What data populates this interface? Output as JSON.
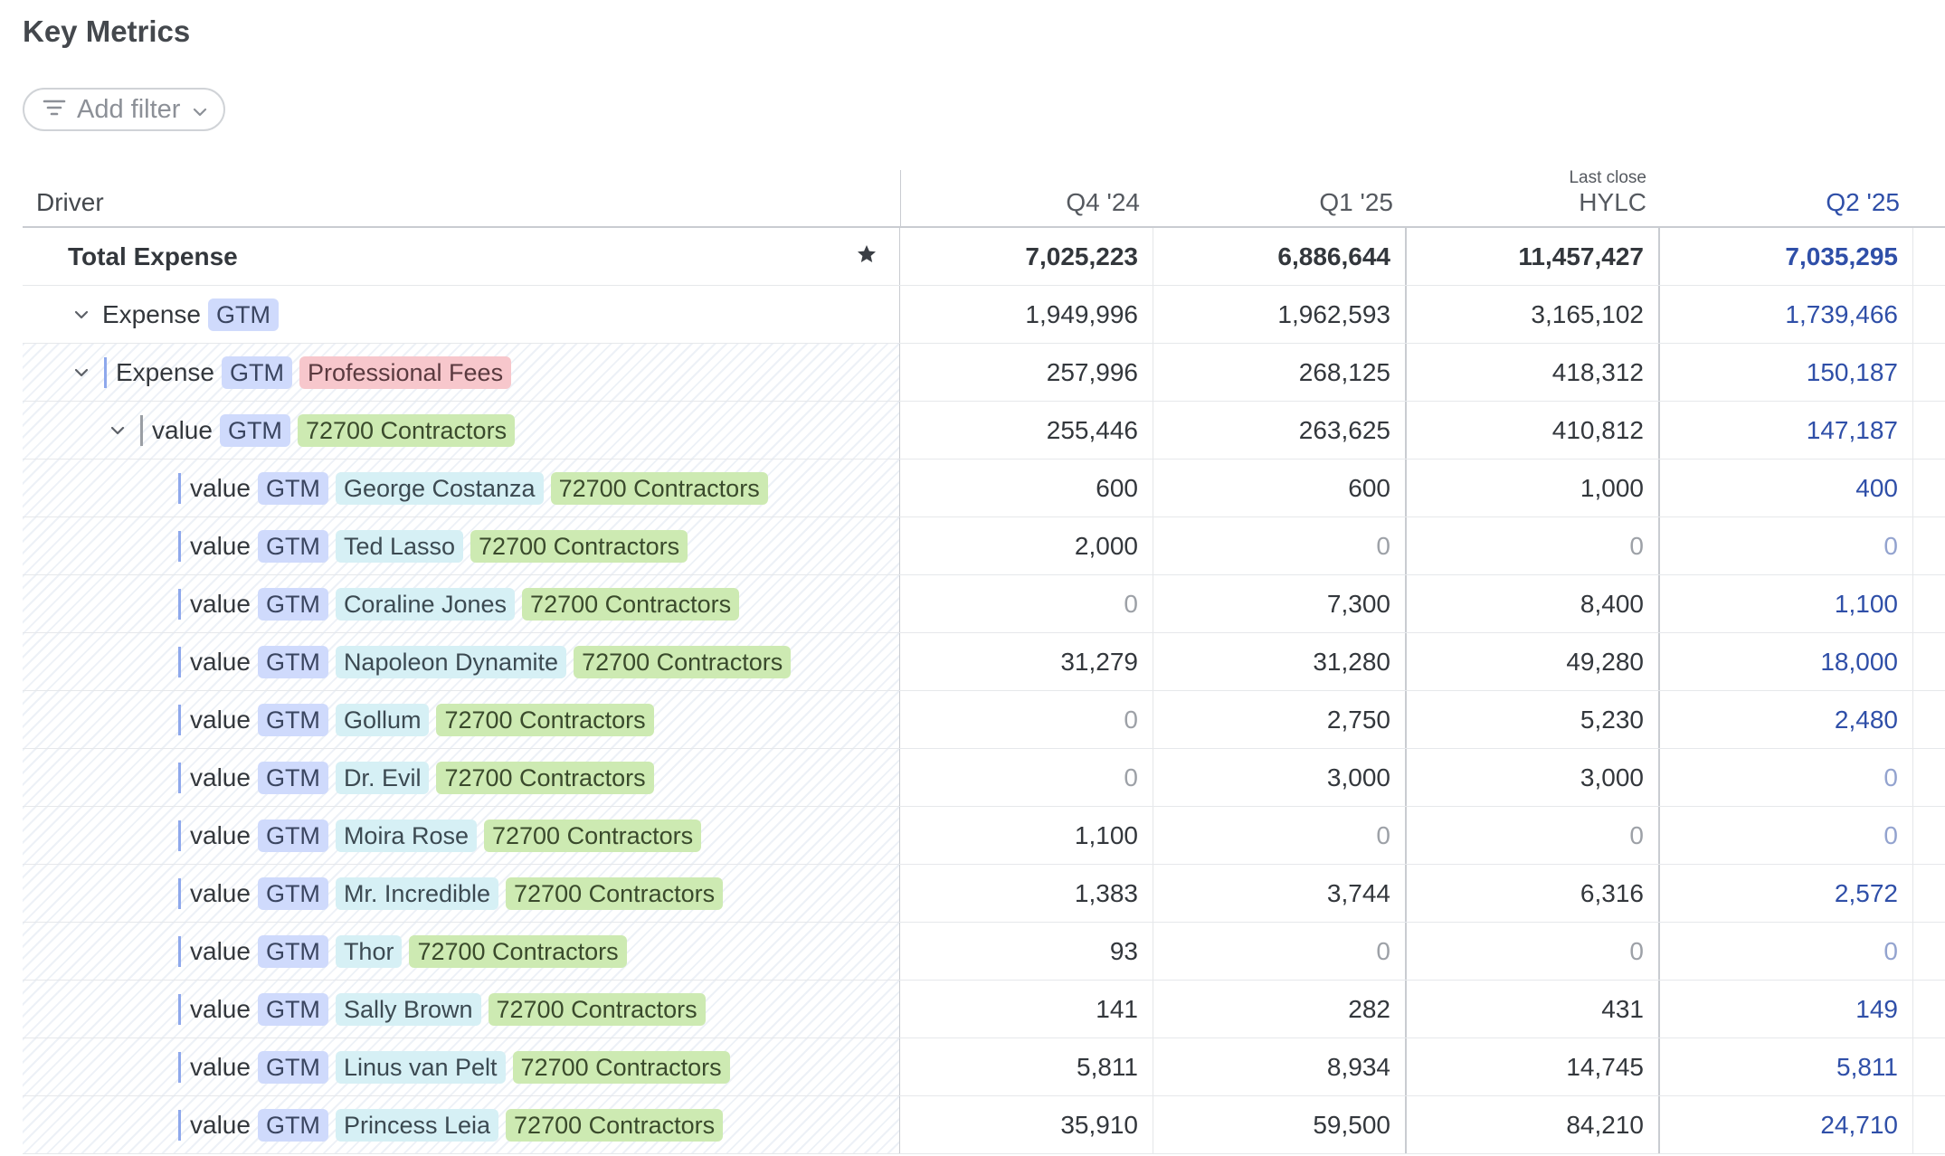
{
  "title": "Key Metrics",
  "filter": {
    "label": "Add filter"
  },
  "columns": {
    "driver": "Driver",
    "c1": "Q4 '24",
    "c2": "Q1 '25",
    "c3_sub": "Last close",
    "c3": "HYLC",
    "c4": "Q2 '25"
  },
  "total": {
    "label": "Total Expense",
    "v1": "7,025,223",
    "v2": "6,886,644",
    "v3": "11,457,427",
    "v4": "7,035,295"
  },
  "expense_gtm": {
    "label": "Expense",
    "tag": "GTM",
    "v1": "1,949,996",
    "v2": "1,962,593",
    "v3": "3,165,102",
    "v4": "1,739,466"
  },
  "expense_fees": {
    "label": "Expense",
    "tag": "GTM",
    "tag2": "Professional Fees",
    "v1": "257,996",
    "v2": "268,125",
    "v3": "418,312",
    "v4": "150,187"
  },
  "value_contractors": {
    "label": "value",
    "tag": "GTM",
    "tag2": "72700 Contractors",
    "v1": "255,446",
    "v2": "263,625",
    "v3": "410,812",
    "v4": "147,187"
  },
  "rows": [
    {
      "label": "value",
      "tag": "GTM",
      "person": "George Costanza",
      "account": "72700 Contractors",
      "v1": "600",
      "v2": "600",
      "v3": "1,000",
      "v4": "400"
    },
    {
      "label": "value",
      "tag": "GTM",
      "person": "Ted Lasso",
      "account": "72700 Contractors",
      "v1": "2,000",
      "v2": "0",
      "v3": "0",
      "v4": "0"
    },
    {
      "label": "value",
      "tag": "GTM",
      "person": "Coraline Jones",
      "account": "72700 Contractors",
      "v1": "0",
      "v2": "7,300",
      "v3": "8,400",
      "v4": "1,100"
    },
    {
      "label": "value",
      "tag": "GTM",
      "person": "Napoleon Dynamite",
      "account": "72700 Contractors",
      "v1": "31,279",
      "v2": "31,280",
      "v3": "49,280",
      "v4": "18,000"
    },
    {
      "label": "value",
      "tag": "GTM",
      "person": "Gollum",
      "account": "72700 Contractors",
      "v1": "0",
      "v2": "2,750",
      "v3": "5,230",
      "v4": "2,480"
    },
    {
      "label": "value",
      "tag": "GTM",
      "person": "Dr. Evil",
      "account": "72700 Contractors",
      "v1": "0",
      "v2": "3,000",
      "v3": "3,000",
      "v4": "0"
    },
    {
      "label": "value",
      "tag": "GTM",
      "person": "Moira Rose",
      "account": "72700 Contractors",
      "v1": "1,100",
      "v2": "0",
      "v3": "0",
      "v4": "0"
    },
    {
      "label": "value",
      "tag": "GTM",
      "person": "Mr. Incredible",
      "account": "72700 Contractors",
      "v1": "1,383",
      "v2": "3,744",
      "v3": "6,316",
      "v4": "2,572"
    },
    {
      "label": "value",
      "tag": "GTM",
      "person": "Thor",
      "account": "72700 Contractors",
      "v1": "93",
      "v2": "0",
      "v3": "0",
      "v4": "0"
    },
    {
      "label": "value",
      "tag": "GTM",
      "person": "Sally Brown",
      "account": "72700 Contractors",
      "v1": "141",
      "v2": "282",
      "v3": "431",
      "v4": "149"
    },
    {
      "label": "value",
      "tag": "GTM",
      "person": "Linus van Pelt",
      "account": "72700 Contractors",
      "v1": "5,811",
      "v2": "8,934",
      "v3": "14,745",
      "v4": "5,811"
    },
    {
      "label": "value",
      "tag": "GTM",
      "person": "Princess Leia",
      "account": "72700 Contractors",
      "v1": "35,910",
      "v2": "59,500",
      "v3": "84,210",
      "v4": "24,710"
    }
  ]
}
